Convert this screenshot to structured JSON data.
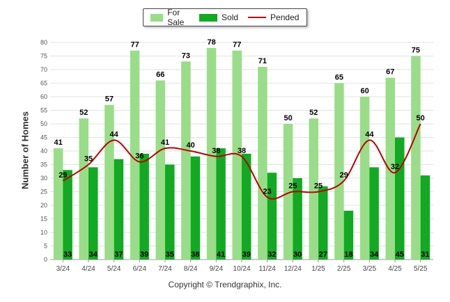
{
  "chart_data": {
    "type": "bar",
    "categories": [
      "3/24",
      "4/24",
      "5/24",
      "6/24",
      "7/24",
      "8/24",
      "9/24",
      "10/24",
      "11/24",
      "12/24",
      "1/25",
      "2/25",
      "3/25",
      "4/25",
      "5/25"
    ],
    "series": [
      {
        "name": "For Sale",
        "type": "bar",
        "color": "#99dd88",
        "values": [
          41,
          52,
          57,
          77,
          66,
          73,
          78,
          77,
          71,
          50,
          52,
          65,
          60,
          67,
          75
        ]
      },
      {
        "name": "Sold",
        "type": "bar",
        "color": "#11aa22",
        "values": [
          33,
          34,
          37,
          39,
          35,
          38,
          41,
          39,
          32,
          30,
          27,
          18,
          34,
          45,
          31
        ]
      },
      {
        "name": "Pended",
        "type": "line",
        "color": "#bb0000",
        "values": [
          29,
          35,
          44,
          36,
          41,
          40,
          38,
          38,
          23,
          25,
          25,
          29,
          44,
          32,
          50
        ]
      }
    ],
    "ylabel": "Number of Homes",
    "ylim": [
      0,
      80
    ],
    "yticks": [
      0,
      5,
      10,
      15,
      20,
      25,
      30,
      35,
      40,
      45,
      50,
      55,
      60,
      65,
      70,
      75,
      80
    ],
    "grid": true,
    "legend_position": "top-center"
  },
  "legend": {
    "for_sale": "For Sale",
    "sold": "Sold",
    "pended": "Pended"
  },
  "footer": {
    "copyright": "Copyright © Trendgraphix, Inc."
  }
}
